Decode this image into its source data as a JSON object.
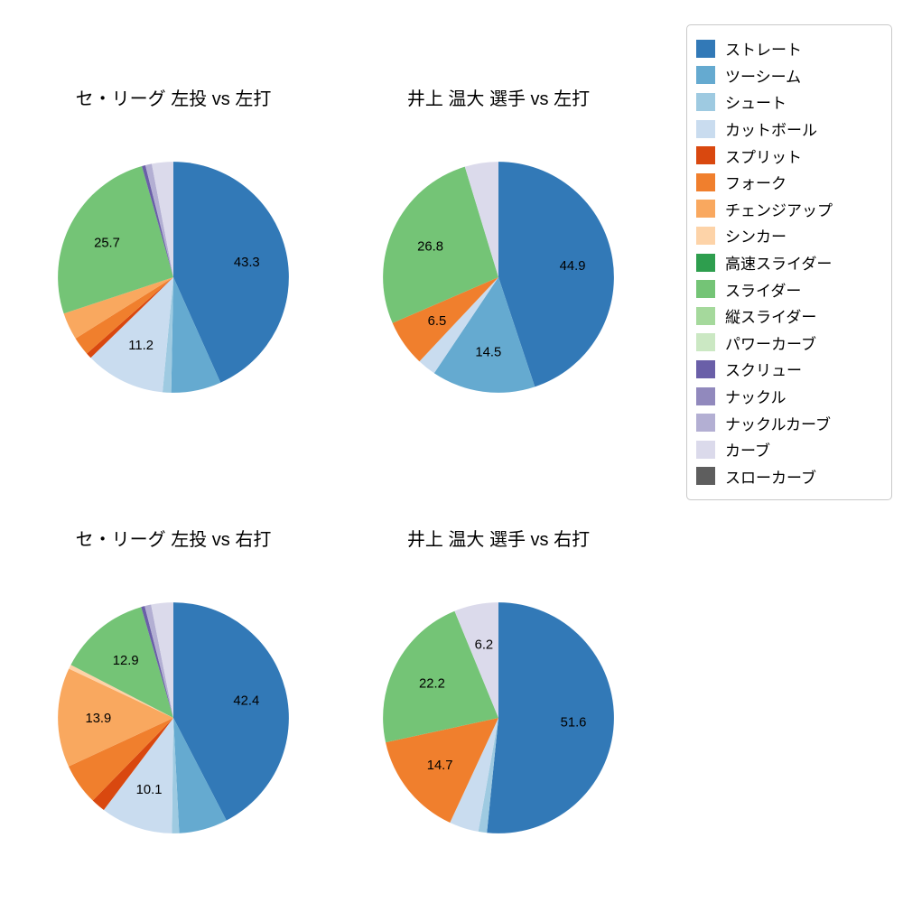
{
  "figure": {
    "background": "#ffffff"
  },
  "legend": {
    "position": "top-right",
    "items": [
      {
        "label": "ストレート",
        "color": "#3279b7"
      },
      {
        "label": "ツーシーム",
        "color": "#65aad0"
      },
      {
        "label": "シュート",
        "color": "#9ecae1"
      },
      {
        "label": "カットボール",
        "color": "#c9dcef"
      },
      {
        "label": "スプリット",
        "color": "#d9480f"
      },
      {
        "label": "フォーク",
        "color": "#f07f2d"
      },
      {
        "label": "チェンジアップ",
        "color": "#f9a85f"
      },
      {
        "label": "シンカー",
        "color": "#fdd3a8"
      },
      {
        "label": "高速スライダー",
        "color": "#2e9e4e"
      },
      {
        "label": "スライダー",
        "color": "#74c476"
      },
      {
        "label": "縦スライダー",
        "color": "#a5d99c"
      },
      {
        "label": "パワーカーブ",
        "color": "#cbe8c3"
      },
      {
        "label": "スクリュー",
        "color": "#6a5fa8"
      },
      {
        "label": "ナックル",
        "color": "#9189bd"
      },
      {
        "label": "ナックルカーブ",
        "color": "#b3afd3"
      },
      {
        "label": "カーブ",
        "color": "#dbdaeb"
      },
      {
        "label": "スローカーブ",
        "color": "#5e5e5e"
      }
    ]
  },
  "chart_data": [
    {
      "type": "pie",
      "title": "セ・リーグ 左投 vs 左打",
      "start_angle_deg": 90,
      "direction": "clockwise",
      "slices": [
        {
          "name": "ストレート",
          "value": 43.3,
          "label": "43.3"
        },
        {
          "name": "ツーシーム",
          "value": 7.0,
          "label": ""
        },
        {
          "name": "シュート",
          "value": 1.2,
          "label": ""
        },
        {
          "name": "カットボール",
          "value": 11.2,
          "label": "11.2"
        },
        {
          "name": "スプリット",
          "value": 0.8,
          "label": ""
        },
        {
          "name": "フォーク",
          "value": 2.6,
          "label": ""
        },
        {
          "name": "チェンジアップ",
          "value": 3.8,
          "label": ""
        },
        {
          "name": "スライダー",
          "value": 25.7,
          "label": "25.7"
        },
        {
          "name": "スクリュー",
          "value": 0.5,
          "label": ""
        },
        {
          "name": "ナックルカーブ",
          "value": 0.9,
          "label": ""
        },
        {
          "name": "カーブ",
          "value": 3.0,
          "label": ""
        }
      ]
    },
    {
      "type": "pie",
      "title": "井上 温大 選手 vs 左打",
      "start_angle_deg": 90,
      "direction": "clockwise",
      "slices": [
        {
          "name": "ストレート",
          "value": 44.9,
          "label": "44.9"
        },
        {
          "name": "ツーシーム",
          "value": 14.5,
          "label": "14.5"
        },
        {
          "name": "カットボール",
          "value": 2.6,
          "label": ""
        },
        {
          "name": "フォーク",
          "value": 6.5,
          "label": "6.5"
        },
        {
          "name": "スライダー",
          "value": 26.8,
          "label": "26.8"
        },
        {
          "name": "カーブ",
          "value": 4.7,
          "label": ""
        }
      ]
    },
    {
      "type": "pie",
      "title": "セ・リーグ 左投 vs 右打",
      "start_angle_deg": 90,
      "direction": "clockwise",
      "slices": [
        {
          "name": "ストレート",
          "value": 42.4,
          "label": "42.4"
        },
        {
          "name": "ツーシーム",
          "value": 6.8,
          "label": ""
        },
        {
          "name": "シュート",
          "value": 1.0,
          "label": ""
        },
        {
          "name": "カットボール",
          "value": 10.1,
          "label": "10.1"
        },
        {
          "name": "スプリット",
          "value": 2.0,
          "label": ""
        },
        {
          "name": "フォーク",
          "value": 5.8,
          "label": ""
        },
        {
          "name": "チェンジアップ",
          "value": 13.9,
          "label": "13.9"
        },
        {
          "name": "シンカー",
          "value": 0.6,
          "label": ""
        },
        {
          "name": "スライダー",
          "value": 12.9,
          "label": "12.9"
        },
        {
          "name": "スクリュー",
          "value": 0.5,
          "label": ""
        },
        {
          "name": "ナックルカーブ",
          "value": 0.9,
          "label": ""
        },
        {
          "name": "カーブ",
          "value": 3.1,
          "label": ""
        }
      ]
    },
    {
      "type": "pie",
      "title": "井上 温大 選手 vs 右打",
      "start_angle_deg": 90,
      "direction": "clockwise",
      "slices": [
        {
          "name": "ストレート",
          "value": 51.6,
          "label": "51.6"
        },
        {
          "name": "シュート",
          "value": 1.2,
          "label": ""
        },
        {
          "name": "カットボール",
          "value": 4.1,
          "label": ""
        },
        {
          "name": "フォーク",
          "value": 14.7,
          "label": "14.7"
        },
        {
          "name": "スライダー",
          "value": 22.2,
          "label": "22.2"
        },
        {
          "name": "カーブ",
          "value": 6.2,
          "label": "6.2"
        }
      ]
    }
  ]
}
